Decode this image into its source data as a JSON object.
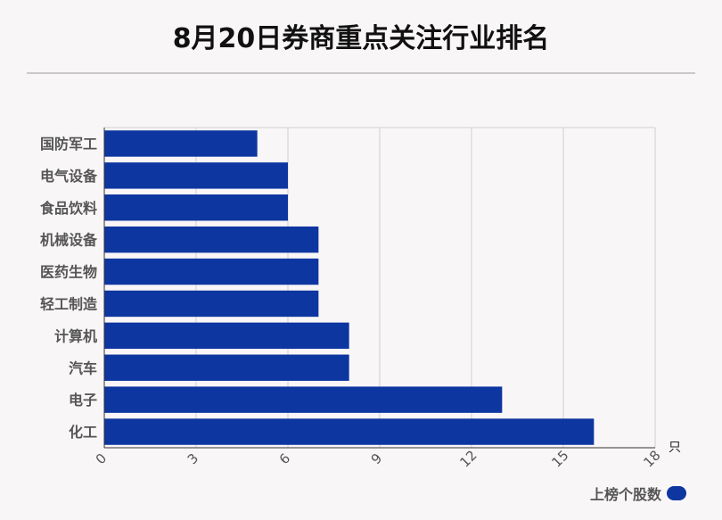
{
  "chart_data": {
    "type": "bar",
    "orientation": "horizontal",
    "title": "8月20日券商重点关注行业排名",
    "categories": [
      "国防军工",
      "电气设备",
      "食品饮料",
      "机械设备",
      "医药生物",
      "轻工制造",
      "计算机",
      "汽车",
      "电子",
      "化工"
    ],
    "series": [
      {
        "name": "上榜个股数",
        "values": [
          5,
          6,
          6,
          7,
          7,
          7,
          8,
          8,
          13,
          16
        ],
        "color": "#0d36a0"
      }
    ],
    "xlabel": "只",
    "xlim": [
      0,
      18
    ],
    "xticks": [
      "0",
      "3",
      "6",
      "9",
      "12",
      "15",
      "18"
    ],
    "grid": true,
    "legend_position": "bottom-right"
  }
}
